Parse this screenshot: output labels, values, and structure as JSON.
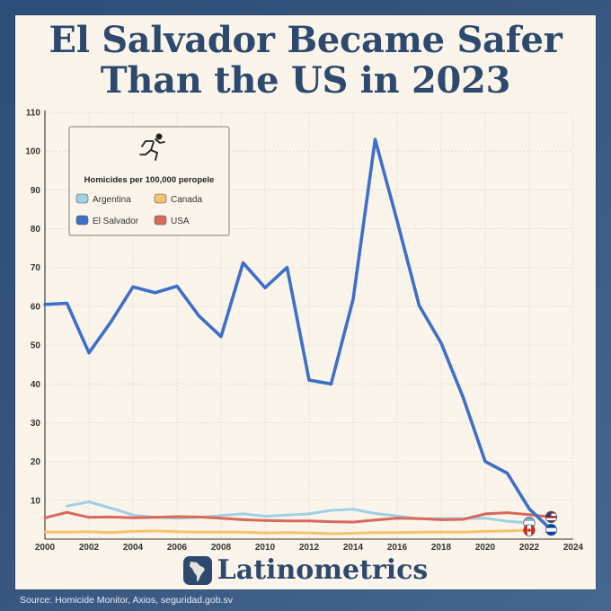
{
  "title_lines": [
    "El Salvador Became Safer",
    "Than the US in 2023"
  ],
  "brand_name": "Latinometrics",
  "source_text": "Source:  Homicide Monitor, Axios, seguridad.gob.sv",
  "icons": {
    "legend": "running-figure-icon",
    "brand": "latin-america-map-icon",
    "markers": [
      "argentina-flag-icon",
      "canada-flag-icon",
      "el-salvador-flag-icon",
      "usa-flag-icon"
    ]
  },
  "chart_data": {
    "type": "line",
    "legend_title": "Homicides per 100,000 peropele",
    "legend_position": "top-left",
    "grid": true,
    "xlim": [
      2000,
      2024
    ],
    "ylim": [
      0,
      110
    ],
    "x_ticks": [
      2000,
      2002,
      2004,
      2006,
      2008,
      2010,
      2012,
      2014,
      2016,
      2018,
      2020,
      2022,
      2024
    ],
    "y_ticks": [
      10,
      20,
      30,
      40,
      50,
      60,
      70,
      80,
      90,
      100,
      110
    ],
    "series": [
      {
        "name": "Argentina",
        "color": "#9fd0e4",
        "x": [
          2001,
          2002,
          2003,
          2004,
          2005,
          2006,
          2007,
          2008,
          2009,
          2010,
          2011,
          2012,
          2013,
          2014,
          2015,
          2016,
          2017,
          2018,
          2019,
          2020,
          2021,
          2022
        ],
        "y": [
          8.5,
          9.6,
          8.0,
          6.2,
          5.6,
          5.4,
          5.6,
          6.1,
          6.5,
          5.9,
          6.2,
          6.5,
          7.4,
          7.7,
          6.6,
          6.0,
          5.2,
          5.3,
          5.3,
          5.4,
          4.6,
          4.2
        ]
      },
      {
        "name": "Canada",
        "color": "#f5c36b",
        "x": [
          2000,
          2001,
          2002,
          2003,
          2004,
          2005,
          2006,
          2007,
          2008,
          2009,
          2010,
          2011,
          2012,
          2013,
          2014,
          2015,
          2016,
          2017,
          2018,
          2019,
          2020,
          2021,
          2022
        ],
        "y": [
          1.8,
          1.8,
          1.9,
          1.7,
          2.0,
          2.1,
          1.9,
          1.8,
          1.8,
          1.8,
          1.6,
          1.7,
          1.6,
          1.4,
          1.5,
          1.7,
          1.7,
          1.8,
          1.8,
          1.8,
          2.0,
          2.1,
          2.3
        ]
      },
      {
        "name": "El Salvador",
        "color": "#3e6fc9",
        "x": [
          2000,
          2001,
          2002,
          2003,
          2004,
          2005,
          2006,
          2007,
          2008,
          2009,
          2010,
          2011,
          2012,
          2013,
          2014,
          2015,
          2016,
          2017,
          2018,
          2019,
          2020,
          2021,
          2022,
          2023
        ],
        "y": [
          60.5,
          60.8,
          48,
          56,
          65,
          63.5,
          65.2,
          57.5,
          52.2,
          71.2,
          64.8,
          70,
          41,
          40,
          61.8,
          103,
          82,
          60.2,
          50.5,
          36.5,
          20,
          17,
          7.8,
          2.4
        ]
      },
      {
        "name": "USA",
        "color": "#d9685a",
        "x": [
          2000,
          2001,
          2002,
          2003,
          2004,
          2005,
          2006,
          2007,
          2008,
          2009,
          2010,
          2011,
          2012,
          2013,
          2014,
          2015,
          2016,
          2017,
          2018,
          2019,
          2020,
          2021,
          2022,
          2023
        ],
        "y": [
          5.5,
          6.9,
          5.6,
          5.7,
          5.5,
          5.6,
          5.8,
          5.7,
          5.4,
          5.0,
          4.8,
          4.7,
          4.7,
          4.5,
          4.4,
          4.9,
          5.4,
          5.3,
          5.0,
          5.1,
          6.5,
          6.8,
          6.3,
          5.7
        ]
      }
    ]
  }
}
